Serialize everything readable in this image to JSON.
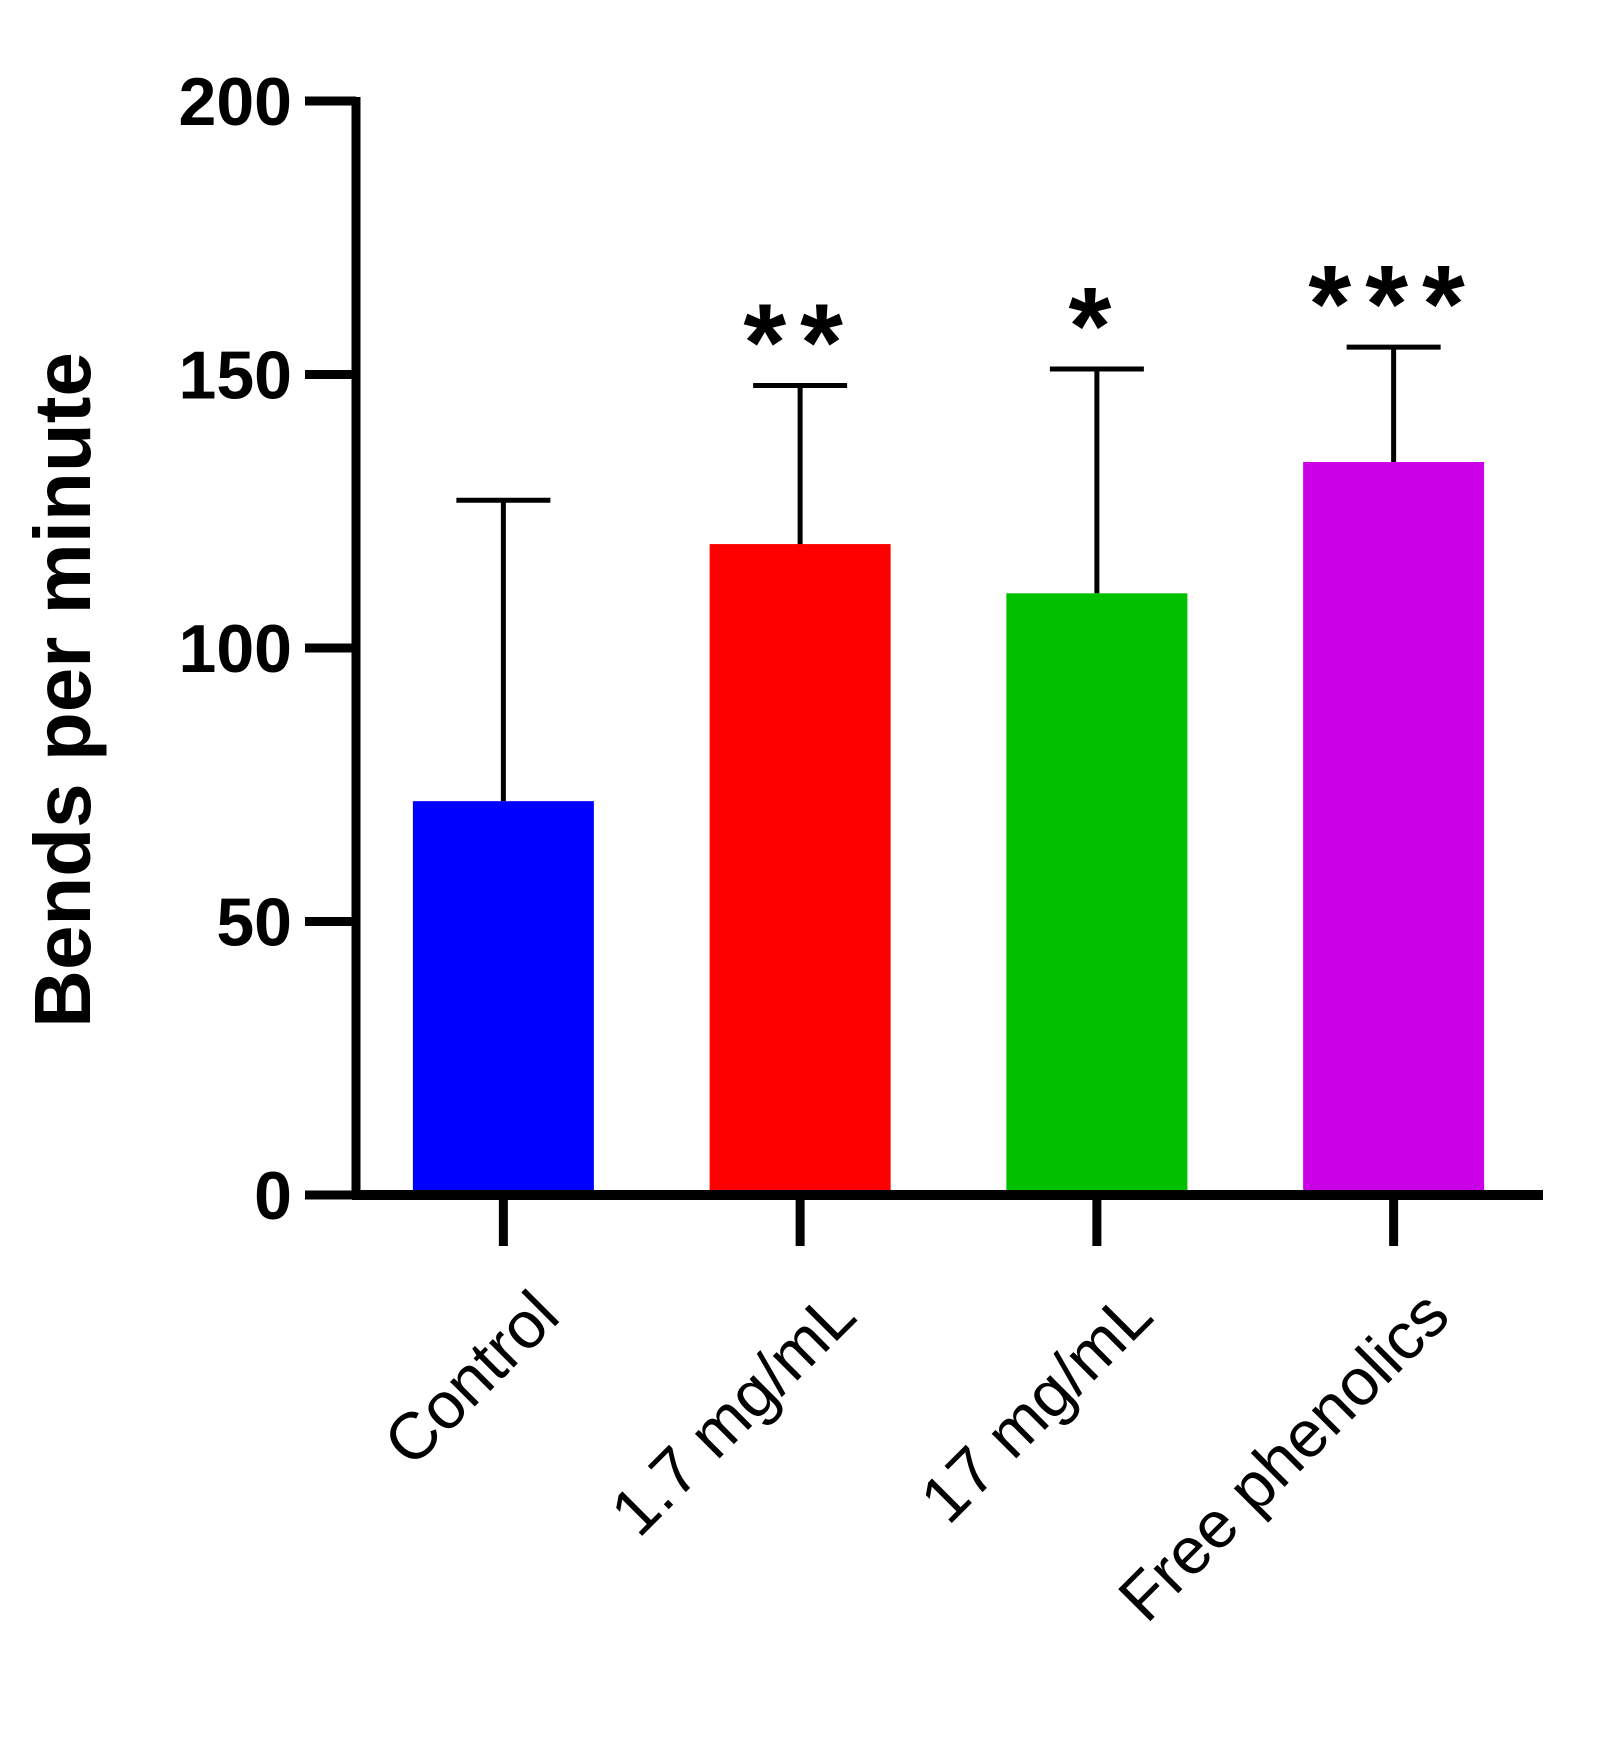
{
  "chart_data": {
    "type": "bar",
    "title": "",
    "xlabel": "",
    "ylabel": "Bends per minute",
    "ylim": [
      0,
      200
    ],
    "yticks": [
      0,
      50,
      100,
      150,
      200
    ],
    "categories": [
      "Control",
      "1.7 mg/mL",
      "17 mg/mL",
      "Free phenolics"
    ],
    "values": [
      72,
      119,
      110,
      134
    ],
    "error_upper": [
      127,
      148,
      151,
      155
    ],
    "significance": [
      "",
      "**",
      "*",
      "***"
    ],
    "colors": [
      "#0000ff",
      "#ff0000",
      "#00c000",
      "#cc00e6"
    ],
    "grid": false,
    "legend": "none"
  }
}
